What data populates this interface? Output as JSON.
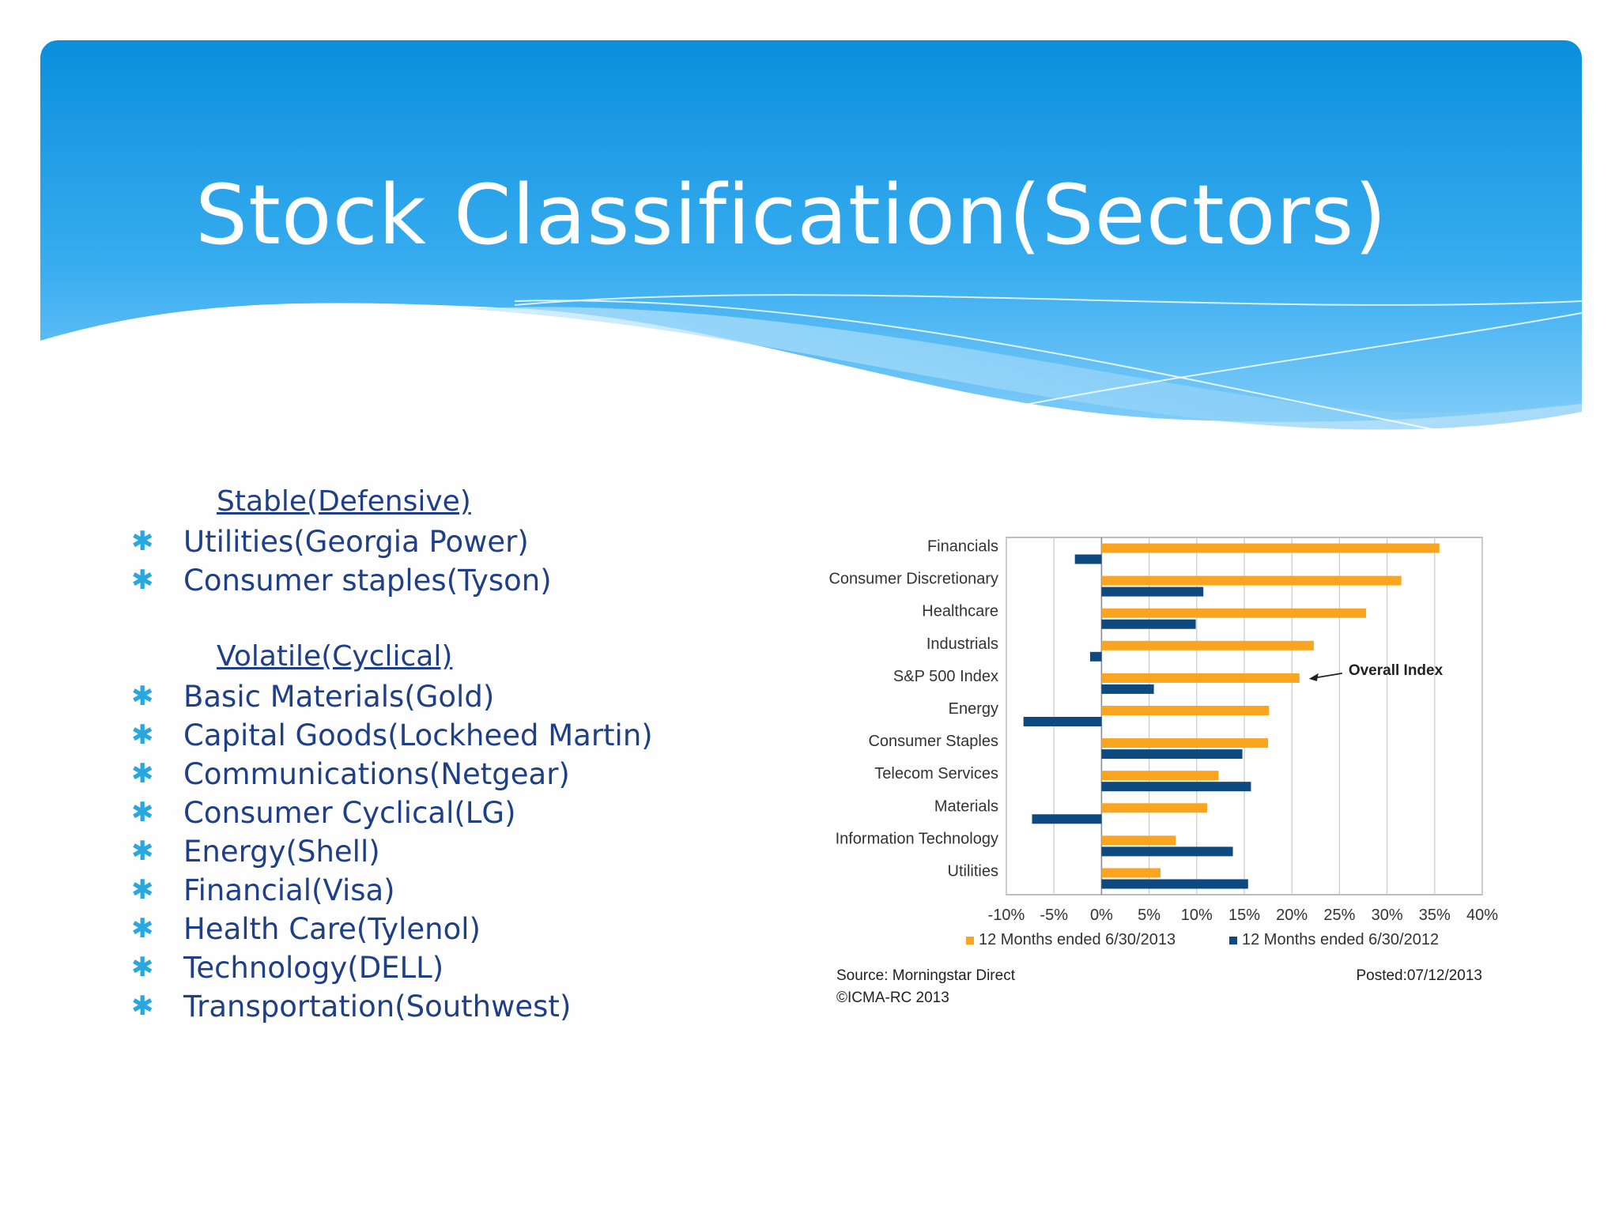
{
  "slide": {
    "title": "Stock Classification(Sectors)",
    "stable": {
      "heading": "Stable(Defensive)",
      "items": [
        "Utilities(Georgia Power)",
        "Consumer staples(Tyson)"
      ]
    },
    "volatile": {
      "heading": "Volatile(Cyclical)",
      "items": [
        "Basic Materials(Gold)",
        "Capital Goods(Lockheed Martin)",
        "Communications(Netgear)",
        "Consumer Cyclical(LG)",
        "Energy(Shell)",
        "Financial(Visa)",
        "Health Care(Tylenol)",
        "Technology(DELL)",
        "Transportation(Southwest)"
      ]
    },
    "bullet_icon": "asterisk-bullet-icon",
    "colors": {
      "title_text": "#ffffff",
      "header_blue": "#0a8fdc",
      "list_text": "#1f3f86",
      "bullet": "#29a8e0"
    }
  },
  "chart_data": {
    "type": "bar",
    "orientation": "horizontal",
    "categories": [
      "Financials",
      "Consumer Discretionary",
      "Healthcare",
      "Industrials",
      "S&P 500 Index",
      "Energy",
      "Consumer Staples",
      "Telecom Services",
      "Materials",
      "Information Technology",
      "Utilities"
    ],
    "series": [
      {
        "name": "12 Months ended 6/30/2013",
        "color": "#f9a51f",
        "values": [
          35.5,
          31.5,
          27.8,
          22.3,
          20.8,
          17.6,
          17.5,
          12.3,
          11.1,
          7.8,
          6.2
        ]
      },
      {
        "name": "12 Months ended 6/30/2012",
        "color": "#0e4a80",
        "values": [
          -2.8,
          10.7,
          9.9,
          -1.2,
          5.5,
          -8.2,
          14.8,
          15.7,
          -7.3,
          13.8,
          15.4
        ]
      }
    ],
    "xlim": [
      -10,
      40
    ],
    "xticks": [
      -10,
      -5,
      0,
      5,
      10,
      15,
      20,
      25,
      30,
      35,
      40
    ],
    "xtick_labels": [
      "-10%",
      "-5%",
      "0%",
      "5%",
      "10%",
      "15%",
      "20%",
      "25%",
      "30%",
      "35%",
      "40%"
    ],
    "grid": "vertical",
    "legend": "bottom",
    "annotation": {
      "text": "Overall Index",
      "points_to": "S&P 500 Index"
    },
    "source": "Source: Morningstar Direct",
    "copyright": "©ICMA-RC 2013",
    "posted": "Posted:07/12/2013"
  }
}
